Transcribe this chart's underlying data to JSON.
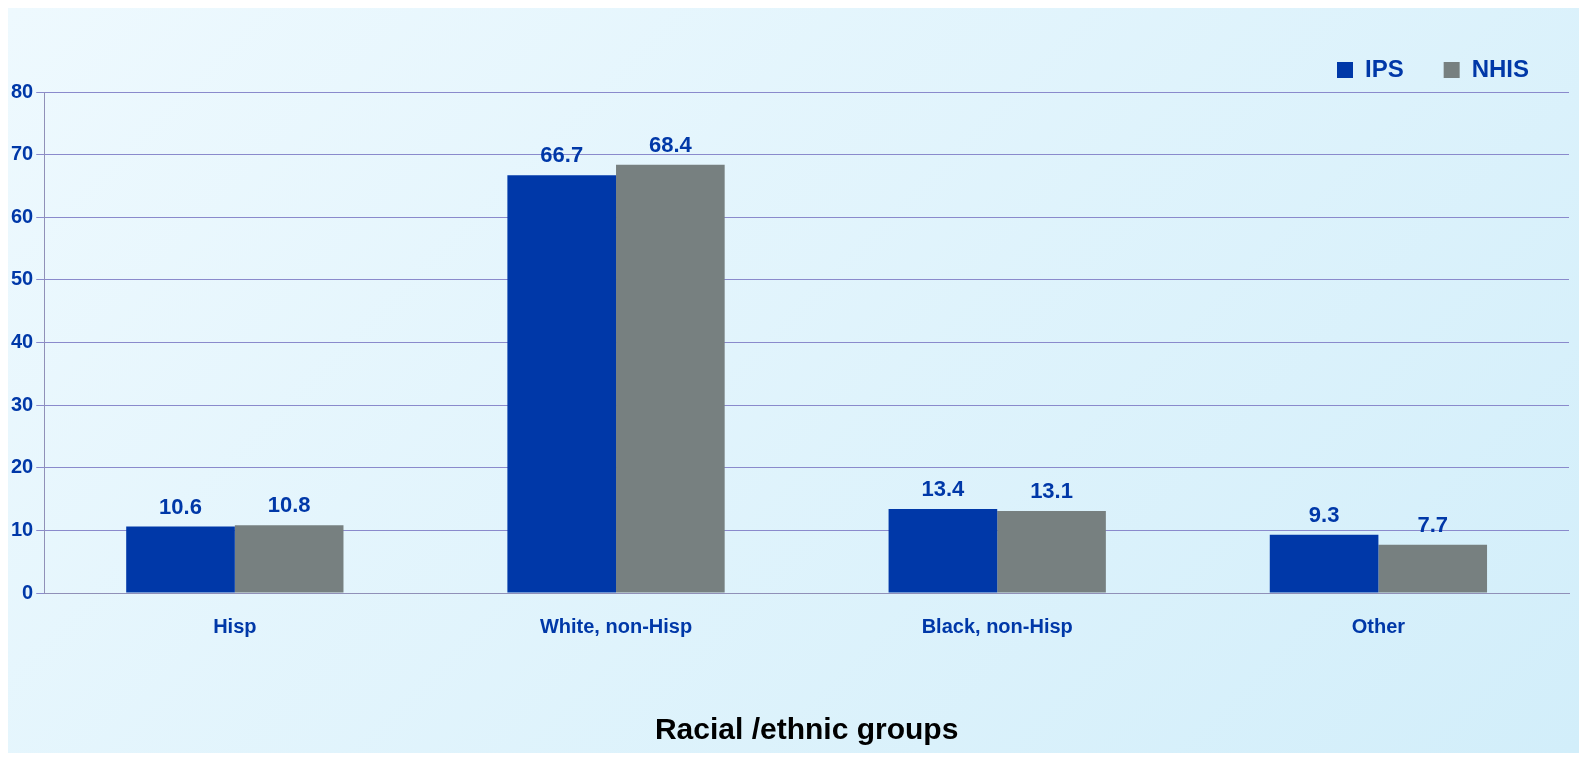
{
  "chart_data": {
    "type": "bar",
    "xlabel": "Racial /ethnic groups",
    "categories": [
      "Hisp",
      "White, non-Hisp",
      "Black, non-Hisp",
      "Other"
    ],
    "series": [
      {
        "name": "IPS",
        "color": "#0038a8",
        "values": [
          10.6,
          66.7,
          13.4,
          9.3
        ]
      },
      {
        "name": "NHIS",
        "color": "#778080",
        "values": [
          10.8,
          68.4,
          13.1,
          7.7
        ]
      }
    ],
    "ylim": [
      0,
      80
    ],
    "yticks": [
      0,
      10,
      20,
      30,
      40,
      50,
      60,
      70,
      80
    ],
    "grid": "y",
    "legend": "top right",
    "data_labels": true
  }
}
